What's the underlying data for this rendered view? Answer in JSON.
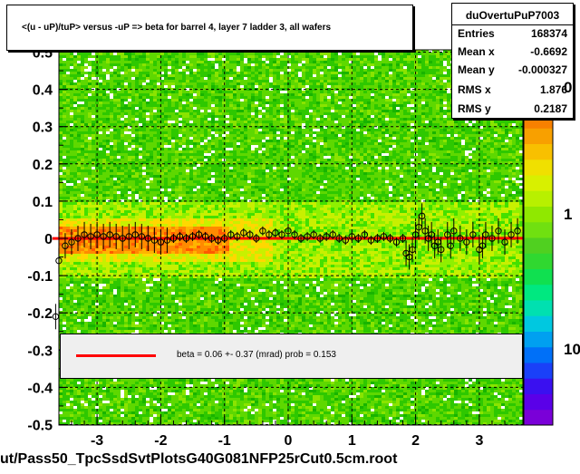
{
  "title": "<(u - uP)/tuP> versus  -uP => beta for barrel 4, layer 7 ladder 3, all wafers",
  "stats": {
    "name": "duOvertuPuP7003",
    "rows": [
      {
        "label": "Entries",
        "value": "168374"
      },
      {
        "label": "Mean x",
        "value": "-0.6692"
      },
      {
        "label": "Mean y",
        "value": "-0.000327"
      },
      {
        "label": "RMS x",
        "value": "1.876"
      },
      {
        "label": "RMS y",
        "value": "0.2187"
      }
    ]
  },
  "legend": {
    "text": "beta =    0.06 +-  0.37 (mrad) prob = 0.153",
    "color": "#ff0000"
  },
  "footer": "ut/Pass50_TpcSsdSvtPlotsG40G081NFP25rCut0.5cm.root",
  "palette": {
    "tick_labels": [
      "0",
      "1",
      "10"
    ]
  },
  "chart_data": {
    "type": "heatmap",
    "title": "<(u - uP)/tuP> versus  -uP => beta for barrel 4, layer 7 ladder 3, all wafers",
    "xlim": [
      -3.7,
      3.7
    ],
    "ylim": [
      -0.5,
      0.5
    ],
    "xticks": [
      -3,
      -2,
      -1,
      0,
      1,
      2,
      3
    ],
    "yticks": [
      -0.5,
      -0.4,
      -0.3,
      -0.2,
      -0.1,
      0,
      0.1,
      0.2,
      0.3,
      0.4,
      0.5
    ],
    "ytick_labels": [
      "-0.5",
      "-0.4",
      "-0.3",
      "-0.2",
      "-0.1",
      "0",
      "0.1",
      "0.2",
      "0.3",
      "0.4",
      "0.5"
    ],
    "xtick_labels": [
      "-3",
      "-2",
      "-1",
      "0",
      "1",
      "2",
      "3"
    ],
    "grid": true,
    "z_scale": "log",
    "fit_line": {
      "slope": 6e-05,
      "intercept": 0.0,
      "color": "#ff0000"
    },
    "profile_points": [
      [
        -3.6,
        -0.06
      ],
      [
        -3.5,
        -0.02
      ],
      [
        -3.4,
        -0.01
      ],
      [
        -3.3,
        0.0
      ],
      [
        -3.2,
        0.01
      ],
      [
        -3.1,
        0.005
      ],
      [
        -3.0,
        0.01
      ],
      [
        -2.9,
        0.005
      ],
      [
        -2.8,
        0.01
      ],
      [
        -2.7,
        0.005
      ],
      [
        -2.6,
        0.0
      ],
      [
        -2.5,
        0.005
      ],
      [
        -2.4,
        0.01
      ],
      [
        -2.3,
        0.005
      ],
      [
        -2.2,
        0.0
      ],
      [
        -2.1,
        -0.005
      ],
      [
        -2.0,
        -0.01
      ],
      [
        -1.9,
        -0.005
      ],
      [
        -1.8,
        0.0
      ],
      [
        -1.7,
        0.005
      ],
      [
        -1.6,
        0.0
      ],
      [
        -1.5,
        0.005
      ],
      [
        -1.4,
        0.01
      ],
      [
        -1.3,
        0.005
      ],
      [
        -1.2,
        0.0
      ],
      [
        -1.1,
        -0.005
      ],
      [
        -1.0,
        0.0
      ],
      [
        -0.9,
        0.01
      ],
      [
        -0.8,
        0.005
      ],
      [
        -0.7,
        0.015
      ],
      [
        -0.6,
        0.01
      ],
      [
        -0.5,
        0.0
      ],
      [
        -0.4,
        0.02
      ],
      [
        -0.3,
        0.01
      ],
      [
        -0.2,
        0.015
      ],
      [
        -0.1,
        0.01
      ],
      [
        0.0,
        0.02
      ],
      [
        0.1,
        0.01
      ],
      [
        0.2,
        0.0
      ],
      [
        0.3,
        0.005
      ],
      [
        0.4,
        0.01
      ],
      [
        0.5,
        0.0
      ],
      [
        0.6,
        0.005
      ],
      [
        0.7,
        0.01
      ],
      [
        0.8,
        0.0
      ],
      [
        0.9,
        -0.005
      ],
      [
        1.0,
        0.005
      ],
      [
        1.1,
        0.0
      ],
      [
        1.2,
        0.01
      ],
      [
        1.3,
        -0.005
      ],
      [
        1.4,
        0.0
      ],
      [
        1.5,
        0.005
      ],
      [
        1.6,
        0.0
      ],
      [
        1.7,
        -0.01
      ],
      [
        1.8,
        0.0
      ],
      [
        1.85,
        -0.04
      ],
      [
        1.9,
        -0.05
      ],
      [
        1.95,
        -0.03
      ],
      [
        2.0,
        0.01
      ],
      [
        2.05,
        0.03
      ],
      [
        2.1,
        0.06
      ],
      [
        2.15,
        0.02
      ],
      [
        2.2,
        0.0
      ],
      [
        2.25,
        0.01
      ],
      [
        2.3,
        -0.02
      ],
      [
        2.35,
        -0.01
      ],
      [
        2.4,
        -0.03
      ],
      [
        2.5,
        0.01
      ],
      [
        2.55,
        -0.02
      ],
      [
        2.6,
        0.02
      ],
      [
        2.7,
        0.0
      ],
      [
        2.8,
        -0.01
      ],
      [
        2.9,
        0.01
      ],
      [
        3.0,
        -0.03
      ],
      [
        3.05,
        -0.02
      ],
      [
        3.1,
        0.01
      ],
      [
        3.2,
        0.0
      ],
      [
        3.3,
        0.02
      ],
      [
        3.4,
        -0.01
      ],
      [
        3.5,
        0.01
      ],
      [
        3.6,
        0.02
      ],
      [
        -3.65,
        -0.21
      ]
    ]
  }
}
